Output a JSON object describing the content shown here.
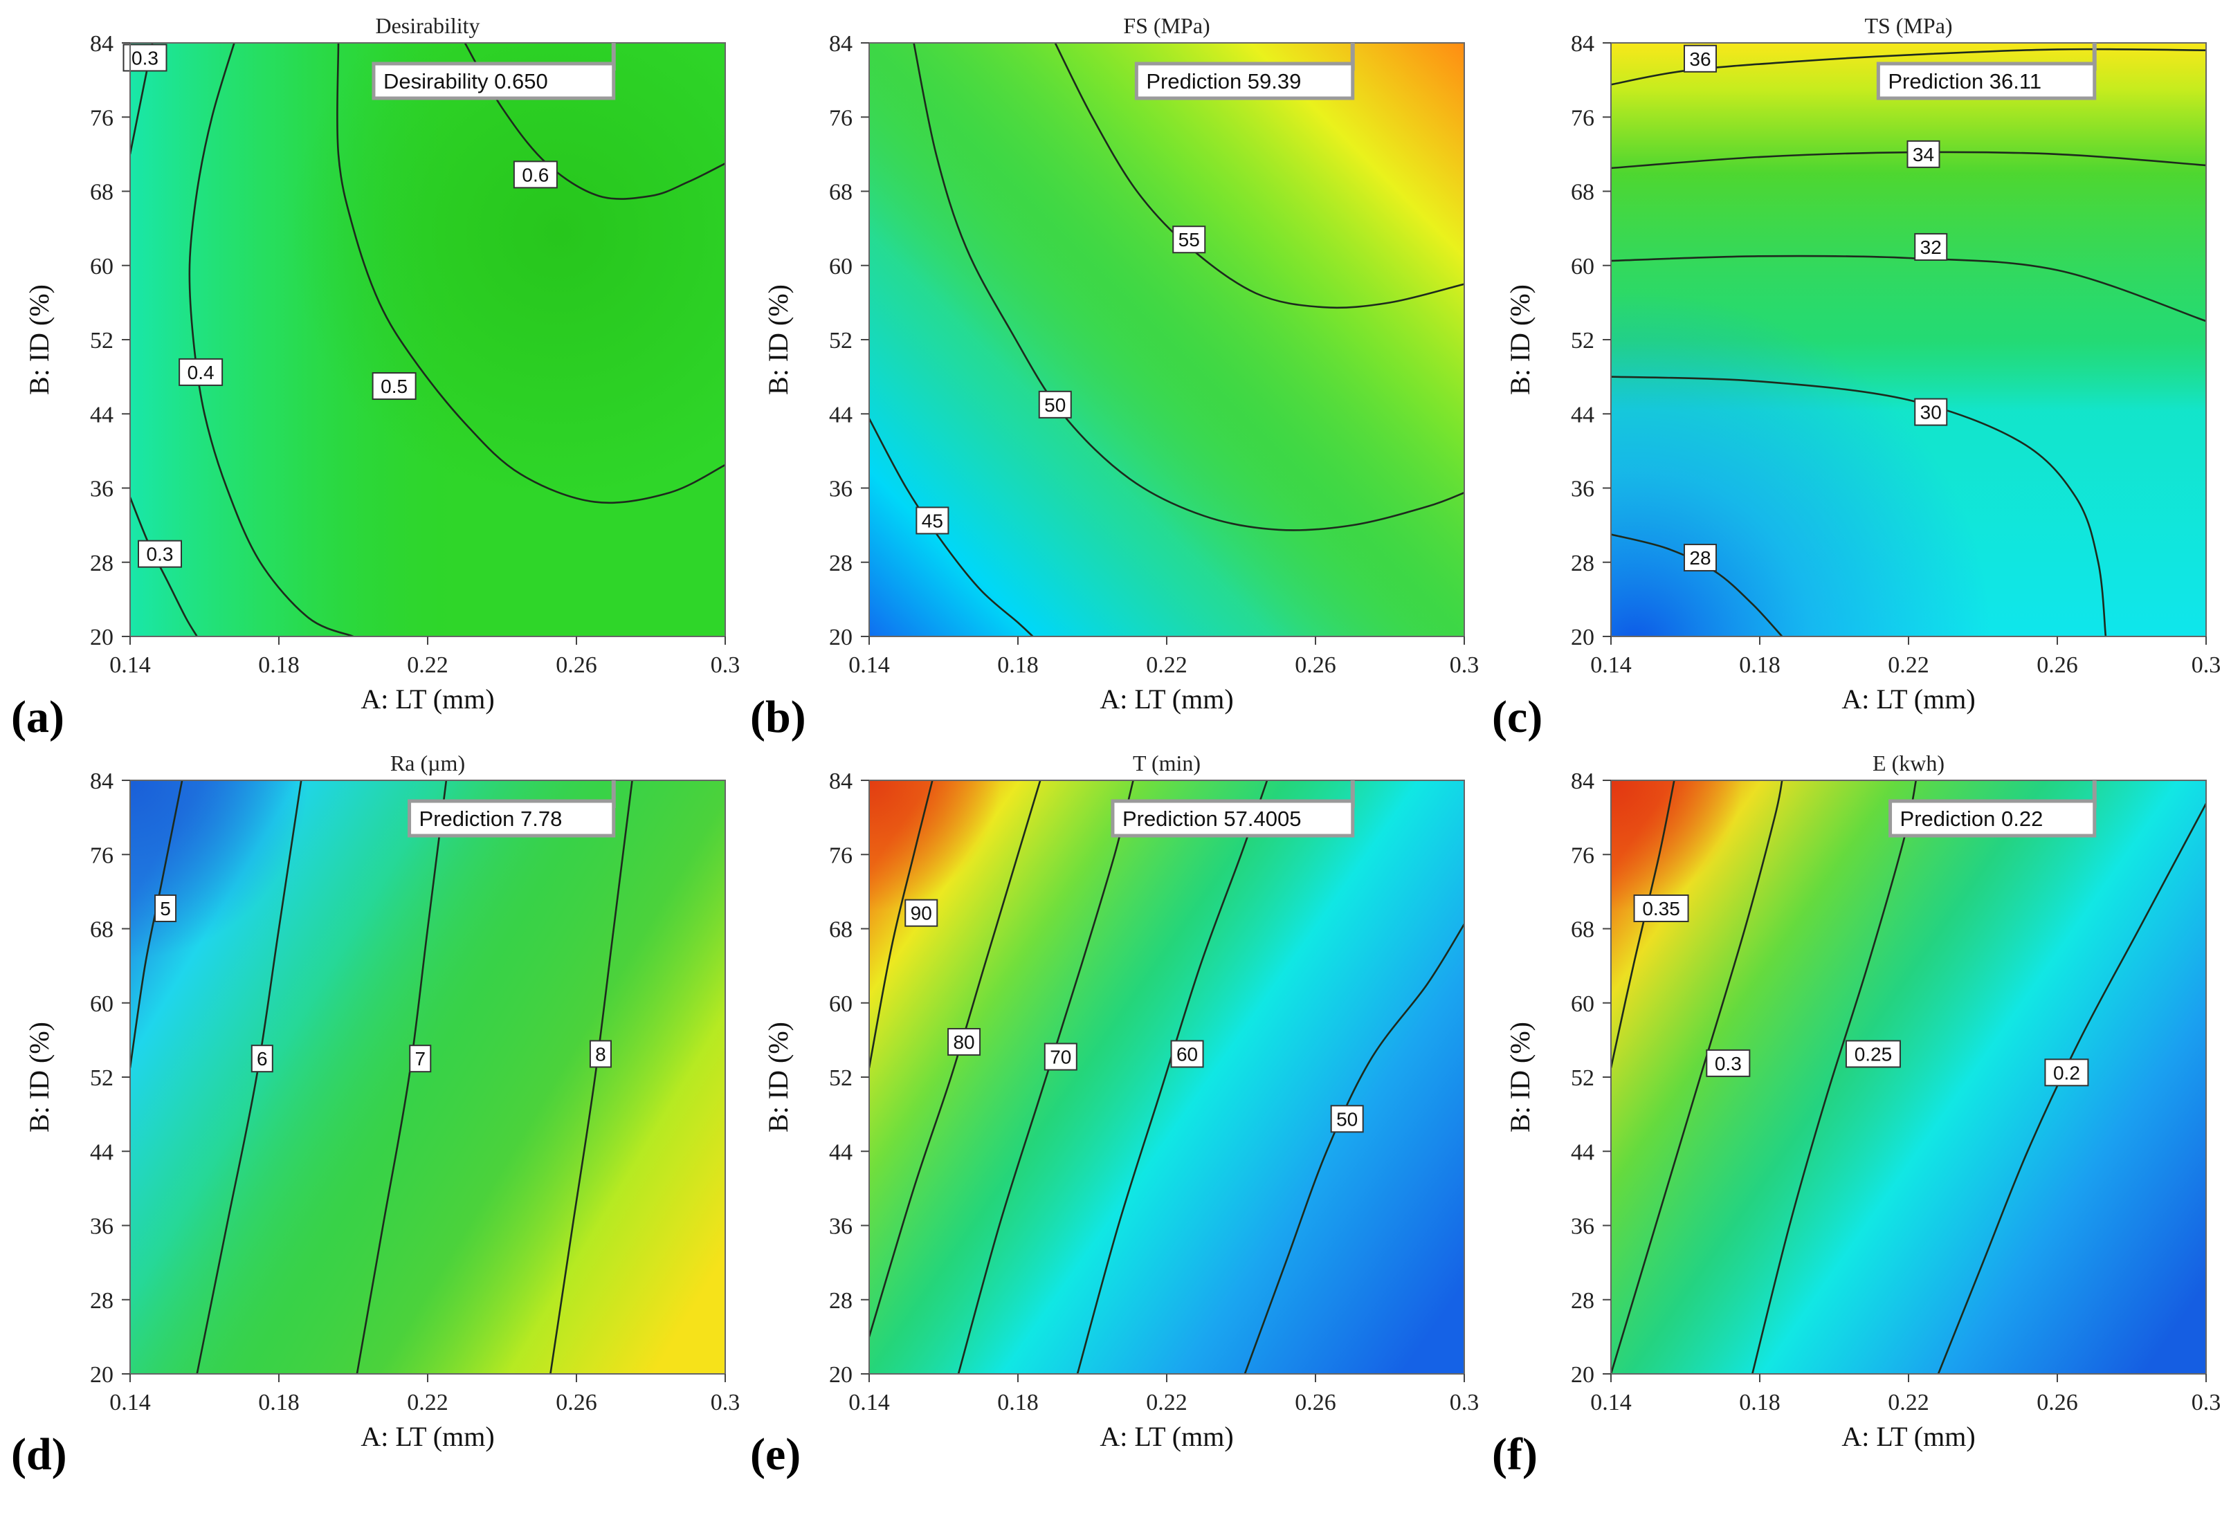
{
  "figure": {
    "type": "contour-panels"
  },
  "chart_data": [
    {
      "type": "heatmap",
      "panel_label": "(a)",
      "title": "Desirability",
      "xlabel": "A: LT (mm)",
      "ylabel": "B: ID (%)",
      "xlim": [
        0.14,
        0.3
      ],
      "ylim": [
        20,
        84
      ],
      "x_ticks": [
        "0.14",
        "0.18",
        "0.22",
        "0.26",
        "0.3"
      ],
      "y_ticks": [
        "20",
        "28",
        "36",
        "44",
        "52",
        "60",
        "68",
        "76",
        "84"
      ],
      "prediction": {
        "label": "Desirability",
        "value": "0.650",
        "x": 0.27,
        "y": 84
      },
      "colormap": "desirability",
      "contours": [
        {
          "label": "0.3",
          "label_at": [
            0.144,
            82.4
          ],
          "points": [
            [
              0.14,
              72
            ],
            [
              0.142,
              76
            ],
            [
              0.144,
              80
            ],
            [
              0.146,
              84
            ]
          ]
        },
        {
          "label": "0.4",
          "label_at": [
            0.159,
            48.5
          ],
          "points": [
            [
              0.168,
              84
            ],
            [
              0.162,
              76
            ],
            [
              0.158,
              68
            ],
            [
              0.156,
              60
            ],
            [
              0.157,
              52
            ],
            [
              0.16,
              44
            ],
            [
              0.166,
              36
            ],
            [
              0.175,
              28
            ],
            [
              0.188,
              22
            ],
            [
              0.2,
              20
            ]
          ]
        },
        {
          "label": "0.3",
          "label_at": [
            0.148,
            28.9
          ],
          "points": [
            [
              0.14,
              35
            ],
            [
              0.145,
              30
            ],
            [
              0.15,
              26
            ],
            [
              0.155,
              22
            ],
            [
              0.158,
              20
            ]
          ]
        },
        {
          "label": "0.5",
          "label_at": [
            0.211,
            47
          ],
          "points": [
            [
              0.196,
              84
            ],
            [
              0.196,
              72
            ],
            [
              0.2,
              64
            ],
            [
              0.207,
              56
            ],
            [
              0.216,
              50
            ],
            [
              0.23,
              43
            ],
            [
              0.245,
              37.5
            ],
            [
              0.265,
              34.5
            ],
            [
              0.285,
              35.5
            ],
            [
              0.3,
              38.5
            ]
          ]
        },
        {
          "label": "0.6",
          "label_at": [
            0.249,
            69.8
          ],
          "points": [
            [
              0.23,
              84
            ],
            [
              0.24,
              77
            ],
            [
              0.252,
              71
            ],
            [
              0.266,
              67.5
            ],
            [
              0.28,
              67.5
            ],
            [
              0.29,
              69
            ],
            [
              0.3,
              71
            ]
          ]
        }
      ]
    },
    {
      "type": "heatmap",
      "panel_label": "(b)",
      "title": "FS (MPa)",
      "xlabel": "A: LT (mm)",
      "ylabel": "B: ID (%)",
      "xlim": [
        0.14,
        0.3
      ],
      "ylim": [
        20,
        84
      ],
      "x_ticks": [
        "0.14",
        "0.18",
        "0.22",
        "0.26",
        "0.3"
      ],
      "y_ticks": [
        "20",
        "28",
        "36",
        "44",
        "52",
        "60",
        "68",
        "76",
        "84"
      ],
      "prediction": {
        "label": "Prediction",
        "value": "59.39",
        "x": 0.27,
        "y": 84
      },
      "colormap": "fs",
      "contours": [
        {
          "label": "45",
          "label_at": [
            0.157,
            32.5
          ],
          "points": [
            [
              0.14,
              43.5
            ],
            [
              0.15,
              36
            ],
            [
              0.16,
              30
            ],
            [
              0.17,
              25
            ],
            [
              0.18,
              21.5
            ],
            [
              0.184,
              20
            ]
          ]
        },
        {
          "label": "50",
          "label_at": [
            0.19,
            45
          ],
          "points": [
            [
              0.152,
              84
            ],
            [
              0.158,
              72
            ],
            [
              0.166,
              62
            ],
            [
              0.178,
              53
            ],
            [
              0.192,
              44
            ],
            [
              0.21,
              37
            ],
            [
              0.23,
              33
            ],
            [
              0.25,
              31.5
            ],
            [
              0.27,
              32
            ],
            [
              0.29,
              34
            ],
            [
              0.3,
              35.5
            ]
          ]
        },
        {
          "label": "55",
          "label_at": [
            0.226,
            62.8
          ],
          "points": [
            [
              0.19,
              84
            ],
            [
              0.2,
              76
            ],
            [
              0.212,
              68
            ],
            [
              0.226,
              62
            ],
            [
              0.244,
              57
            ],
            [
              0.262,
              55.5
            ],
            [
              0.28,
              56
            ],
            [
              0.3,
              58
            ]
          ]
        }
      ]
    },
    {
      "type": "heatmap",
      "panel_label": "(c)",
      "title": "TS (MPa)",
      "xlabel": "A: LT (mm)",
      "ylabel": "B: ID (%)",
      "xlim": [
        0.14,
        0.3
      ],
      "ylim": [
        20,
        84
      ],
      "x_ticks": [
        "0.14",
        "0.18",
        "0.22",
        "0.26",
        "0.3"
      ],
      "y_ticks": [
        "20",
        "28",
        "36",
        "44",
        "52",
        "60",
        "68",
        "76",
        "84"
      ],
      "prediction": {
        "label": "Prediction",
        "value": "36.11",
        "x": 0.27,
        "y": 84
      },
      "colormap": "ts",
      "contours": [
        {
          "label": "36",
          "label_at": [
            0.164,
            82.3
          ],
          "points": [
            [
              0.14,
              79.5
            ],
            [
              0.16,
              81
            ],
            [
              0.19,
              82
            ],
            [
              0.22,
              82.7
            ],
            [
              0.26,
              83.3
            ],
            [
              0.3,
              83.2
            ]
          ]
        },
        {
          "label": "34",
          "label_at": [
            0.224,
            72
          ],
          "points": [
            [
              0.14,
              70.5
            ],
            [
              0.18,
              71.7
            ],
            [
              0.22,
              72.2
            ],
            [
              0.26,
              72
            ],
            [
              0.3,
              70.8
            ]
          ]
        },
        {
          "label": "32",
          "label_at": [
            0.226,
            62
          ],
          "points": [
            [
              0.14,
              60.5
            ],
            [
              0.18,
              61
            ],
            [
              0.22,
              60.8
            ],
            [
              0.26,
              59.5
            ],
            [
              0.3,
              54
            ]
          ]
        },
        {
          "label": "30",
          "label_at": [
            0.226,
            44.2
          ],
          "points": [
            [
              0.14,
              48
            ],
            [
              0.18,
              47.5
            ],
            [
              0.22,
              45.5
            ],
            [
              0.25,
              41
            ],
            [
              0.265,
              35
            ],
            [
              0.271,
              28
            ],
            [
              0.273,
              20
            ]
          ]
        },
        {
          "label": "28",
          "label_at": [
            0.164,
            28.5
          ],
          "points": [
            [
              0.14,
              31
            ],
            [
              0.155,
              29.5
            ],
            [
              0.168,
              27
            ],
            [
              0.178,
              23.5
            ],
            [
              0.186,
              20
            ]
          ]
        }
      ]
    },
    {
      "type": "heatmap",
      "panel_label": "(d)",
      "title": "Ra (µm)",
      "xlabel": "A: LT (mm)",
      "ylabel": "B: ID (%)",
      "xlim": [
        0.14,
        0.3
      ],
      "ylim": [
        20,
        84
      ],
      "x_ticks": [
        "0.14",
        "0.18",
        "0.22",
        "0.26",
        "0.3"
      ],
      "y_ticks": [
        "20",
        "28",
        "36",
        "44",
        "52",
        "60",
        "68",
        "76",
        "84"
      ],
      "prediction": {
        "label": "Prediction",
        "value": "7.78",
        "x": 0.27,
        "y": 84
      },
      "colormap": "ra",
      "contours": [
        {
          "label": "5",
          "label_at": [
            0.1495,
            70.2
          ],
          "points": [
            [
              0.14,
              53
            ],
            [
              0.144,
              64
            ],
            [
              0.148,
              72
            ],
            [
              0.152,
              80
            ],
            [
              0.154,
              84
            ]
          ]
        },
        {
          "label": "6",
          "label_at": [
            0.1755,
            54
          ],
          "points": [
            [
              0.158,
              20
            ],
            [
              0.166,
              36
            ],
            [
              0.174,
              52
            ],
            [
              0.18,
              68
            ],
            [
              0.186,
              84
            ]
          ]
        },
        {
          "label": "7",
          "label_at": [
            0.218,
            54
          ],
          "points": [
            [
              0.201,
              20
            ],
            [
              0.208,
              36
            ],
            [
              0.215,
              52
            ],
            [
              0.22,
              68
            ],
            [
              0.225,
              84
            ]
          ]
        },
        {
          "label": "8",
          "label_at": [
            0.2665,
            54.5
          ],
          "points": [
            [
              0.253,
              20
            ],
            [
              0.259,
              36
            ],
            [
              0.265,
              52
            ],
            [
              0.27,
              68
            ],
            [
              0.275,
              84
            ]
          ]
        }
      ]
    },
    {
      "type": "heatmap",
      "panel_label": "(e)",
      "title": "T (min)",
      "xlabel": "A: LT (mm)",
      "ylabel": "B: ID (%)",
      "xlim": [
        0.14,
        0.3
      ],
      "ylim": [
        20,
        84
      ],
      "x_ticks": [
        "0.14",
        "0.18",
        "0.22",
        "0.26",
        "0.3"
      ],
      "y_ticks": [
        "20",
        "28",
        "36",
        "44",
        "52",
        "60",
        "68",
        "76",
        "84"
      ],
      "prediction": {
        "label": "Prediction",
        "value": "57.4005",
        "x": 0.27,
        "y": 84
      },
      "colormap": "t",
      "contours": [
        {
          "label": "90",
          "label_at": [
            0.154,
            69.7
          ],
          "points": [
            [
              0.14,
              53
            ],
            [
              0.146,
              66
            ],
            [
              0.152,
              76
            ],
            [
              0.157,
              84
            ]
          ]
        },
        {
          "label": "80",
          "label_at": [
            0.1655,
            55.8
          ],
          "points": [
            [
              0.14,
              24
            ],
            [
              0.152,
              40
            ],
            [
              0.162,
              52
            ],
            [
              0.171,
              64
            ],
            [
              0.18,
              76
            ],
            [
              0.186,
              84
            ]
          ]
        },
        {
          "label": "70",
          "label_at": [
            0.1915,
            54.2
          ],
          "points": [
            [
              0.164,
              20
            ],
            [
              0.175,
              36
            ],
            [
              0.186,
              50
            ],
            [
              0.197,
              64
            ],
            [
              0.206,
              76
            ],
            [
              0.211,
              84
            ]
          ]
        },
        {
          "label": "60",
          "label_at": [
            0.2255,
            54.5
          ],
          "points": [
            [
              0.196,
              20
            ],
            [
              0.207,
              36
            ],
            [
              0.218,
              50
            ],
            [
              0.229,
              64
            ],
            [
              0.24,
              76
            ],
            [
              0.247,
              84
            ]
          ]
        },
        {
          "label": "50",
          "label_at": [
            0.2685,
            47.5
          ],
          "points": [
            [
              0.241,
              20
            ],
            [
              0.252,
              32
            ],
            [
              0.263,
              44
            ],
            [
              0.275,
              54
            ],
            [
              0.29,
              62
            ],
            [
              0.3,
              68.5
            ]
          ]
        }
      ]
    },
    {
      "type": "heatmap",
      "panel_label": "(f)",
      "title": "E (kwh)",
      "xlabel": "A: LT (mm)",
      "ylabel": "B: ID (%)",
      "xlim": [
        0.14,
        0.3
      ],
      "ylim": [
        20,
        84
      ],
      "x_ticks": [
        "0.14",
        "0.18",
        "0.22",
        "0.26",
        "0.3"
      ],
      "y_ticks": [
        "20",
        "28",
        "36",
        "44",
        "52",
        "60",
        "68",
        "76",
        "84"
      ],
      "prediction": {
        "label": "Prediction",
        "value": "0.22",
        "x": 0.27,
        "y": 84
      },
      "colormap": "e",
      "contours": [
        {
          "label": "0.35",
          "label_at": [
            0.1535,
            70.2
          ],
          "points": [
            [
              0.14,
              53
            ],
            [
              0.146,
              64
            ],
            [
              0.153,
              76
            ],
            [
              0.157,
              84
            ]
          ]
        },
        {
          "label": "0.3",
          "label_at": [
            0.1715,
            53.5
          ],
          "points": [
            [
              0.14,
              20
            ],
            [
              0.152,
              36
            ],
            [
              0.164,
              52
            ],
            [
              0.176,
              68
            ],
            [
              0.184,
              80
            ],
            [
              0.186,
              84
            ]
          ]
        },
        {
          "label": "0.25",
          "label_at": [
            0.2105,
            54.5
          ],
          "points": [
            [
              0.178,
              20
            ],
            [
              0.188,
              36
            ],
            [
              0.198,
              50
            ],
            [
              0.209,
              64
            ],
            [
              0.219,
              78
            ],
            [
              0.222,
              84
            ]
          ]
        },
        {
          "label": "0.2",
          "label_at": [
            0.2625,
            52.5
          ],
          "points": [
            [
              0.228,
              20
            ],
            [
              0.24,
              32
            ],
            [
              0.252,
              44
            ],
            [
              0.266,
              56
            ],
            [
              0.282,
              68
            ],
            [
              0.3,
              81.5
            ]
          ]
        }
      ]
    }
  ]
}
